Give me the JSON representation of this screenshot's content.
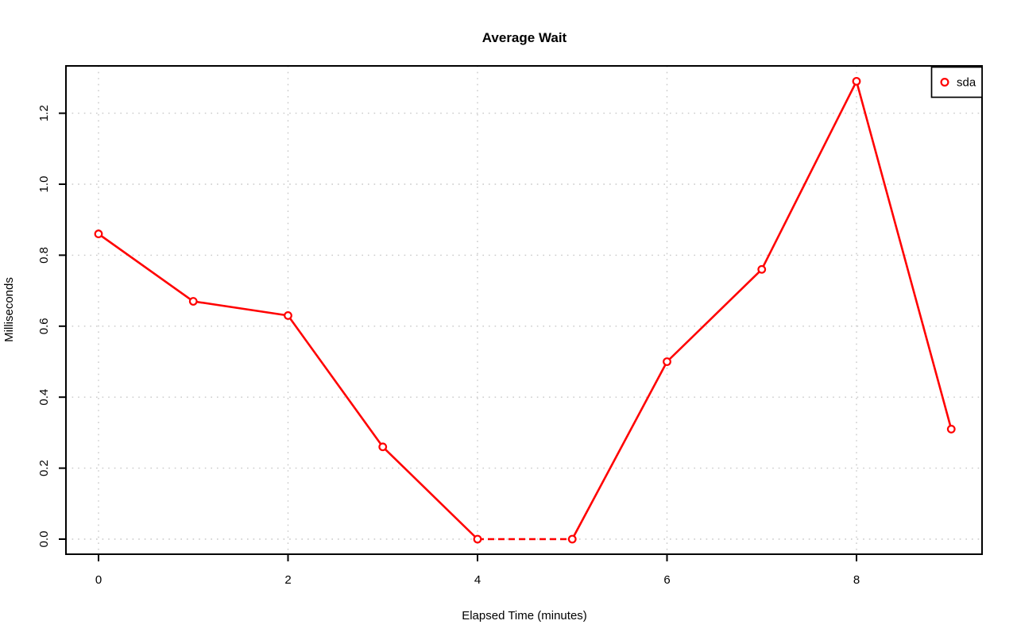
{
  "window": {
    "background": "#FFFFFF"
  },
  "chart_data": {
    "type": "line",
    "title": "Average Wait",
    "xlabel": "Elapsed Time (minutes)",
    "ylabel": "Milliseconds",
    "x": [
      0,
      1,
      2,
      3,
      4,
      5,
      6,
      7,
      8,
      9
    ],
    "series": [
      {
        "name": "sda",
        "color": "#FF0000",
        "marker": "open-circle",
        "values": [
          0.86,
          0.67,
          0.63,
          0.26,
          0.0,
          0.0,
          0.5,
          0.76,
          1.29,
          0.31
        ]
      }
    ],
    "x_ticks": [
      0,
      2,
      4,
      6,
      8
    ],
    "y_ticks": [
      0.0,
      0.2,
      0.4,
      0.6,
      0.8,
      1.0,
      1.2
    ],
    "xlim": [
      -0.36,
      9.36
    ],
    "ylim": [
      -0.05,
      1.34
    ],
    "grid": "dotted",
    "grid_color": "#C8C8C8",
    "axis_color": "#000000",
    "plot_background": "#FFFFFF",
    "legend": {
      "position": "top-right",
      "entries": [
        "sda"
      ]
    },
    "zero_segment_dashed": true
  }
}
